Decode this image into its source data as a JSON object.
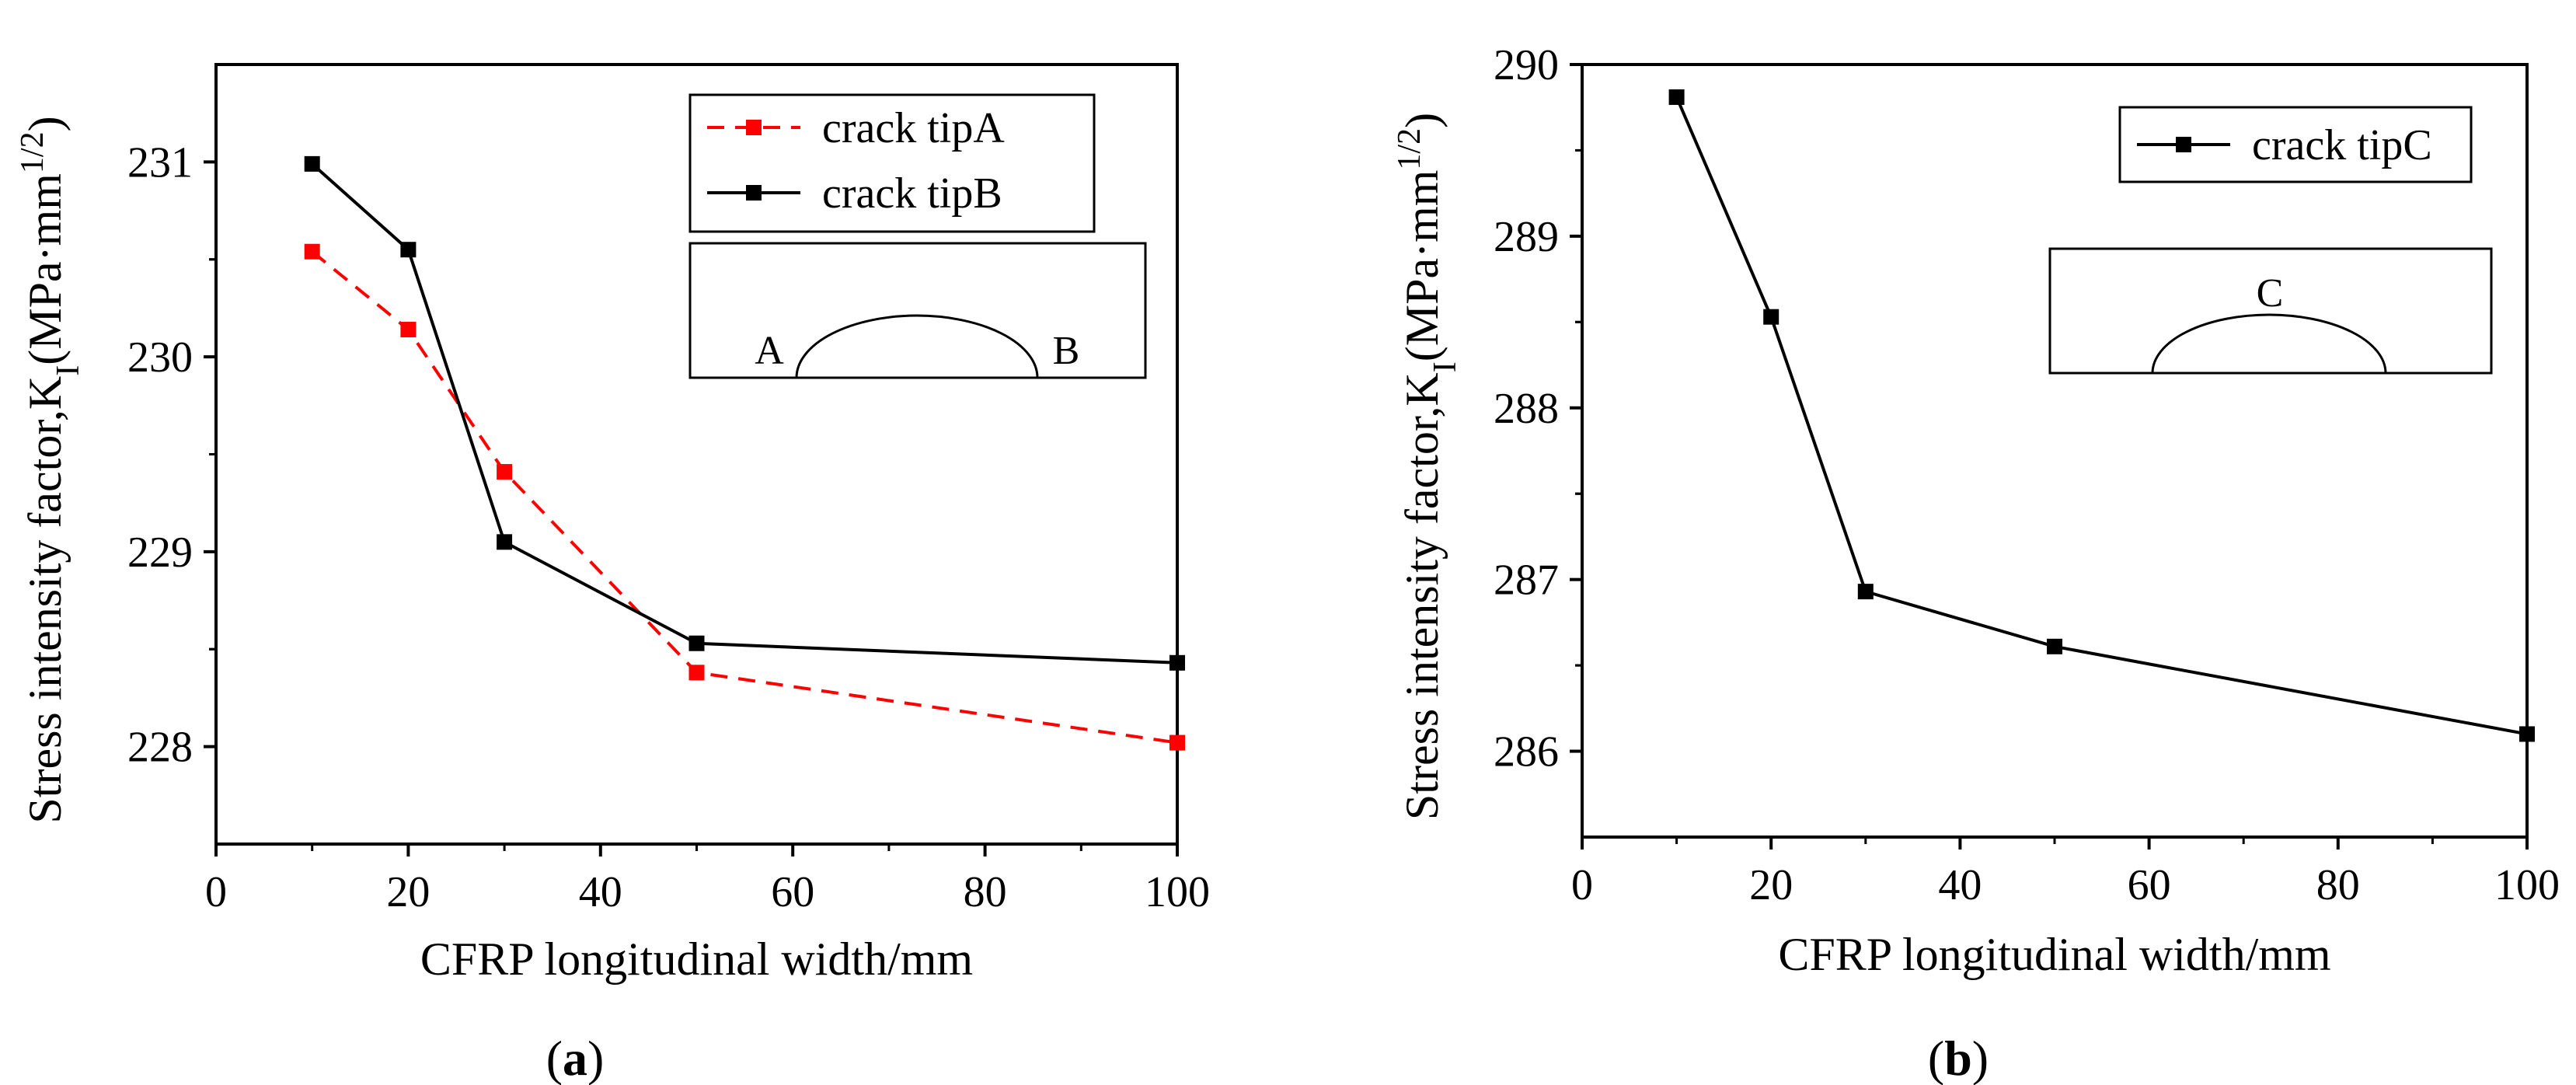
{
  "chart_data": [
    {
      "type": "line",
      "panel": "a",
      "caption_open": "(",
      "caption_letter": "a",
      "caption_close": ")",
      "x": [
        10,
        20,
        30,
        50,
        100
      ],
      "series": [
        {
          "name": "crack tipA",
          "values": [
            230.54,
            230.14,
            229.41,
            228.38,
            228.02
          ],
          "color": "#ff0000",
          "linestyle": "dashed"
        },
        {
          "name": "crack tipB",
          "values": [
            230.99,
            230.55,
            229.05,
            228.53,
            228.43
          ],
          "color": "#000000",
          "linestyle": "solid"
        }
      ],
      "xlabel": "CFRP longitudinal width/mm",
      "ylabel": "Stress intensity factor,K",
      "ylabel_sub": "I",
      "ylabel_unit": "(MPa·mm",
      "ylabel_exp": "1/2",
      "ylabel_close": ")",
      "xlim": [
        0,
        100
      ],
      "ylim": [
        227.5,
        231.5
      ],
      "xticks": [
        0,
        20,
        40,
        60,
        80,
        100
      ],
      "yticks": [
        228,
        229,
        230,
        231
      ],
      "legend_position": "top-right",
      "inset_labels": [
        "A",
        "B"
      ],
      "grid": false
    },
    {
      "type": "line",
      "panel": "b",
      "caption_open": "(",
      "caption_letter": "b",
      "caption_close": ")",
      "x": [
        10,
        20,
        30,
        50,
        100
      ],
      "series": [
        {
          "name": "crack tipC",
          "values": [
            289.81,
            288.53,
            286.93,
            286.61,
            286.1
          ],
          "color": "#000000",
          "linestyle": "solid"
        }
      ],
      "xlabel": "CFRP longitudinal width/mm",
      "ylabel": "Stress intensity factor,K",
      "ylabel_sub": "I",
      "ylabel_unit": "(MPa·mm",
      "ylabel_exp": "1/2",
      "ylabel_close": ")",
      "xlim": [
        0,
        100
      ],
      "ylim": [
        285.5,
        290
      ],
      "xticks": [
        0,
        20,
        40,
        60,
        80,
        100
      ],
      "yticks": [
        286,
        287,
        288,
        289,
        290
      ],
      "legend_position": "top-right",
      "inset_labels": [
        "C"
      ],
      "grid": false
    }
  ]
}
